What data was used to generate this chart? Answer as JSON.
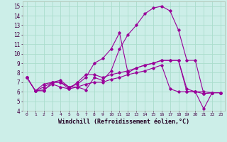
{
  "xlabel": "Windchill (Refroidissement éolien,°C)",
  "bg_color": "#cceee8",
  "grid_color": "#aaddcc",
  "line_color": "#990099",
  "ylim": [
    4,
    15.5
  ],
  "xlim": [
    -0.5,
    23.5
  ],
  "yticks": [
    4,
    5,
    6,
    7,
    8,
    9,
    10,
    11,
    12,
    13,
    14,
    15
  ],
  "xticks": [
    0,
    1,
    2,
    3,
    4,
    5,
    6,
    7,
    8,
    9,
    10,
    11,
    12,
    13,
    14,
    15,
    16,
    17,
    18,
    19,
    20,
    21,
    22,
    23
  ],
  "series": [
    [
      7.5,
      6.1,
      6.1,
      7.0,
      7.2,
      6.5,
      6.5,
      6.2,
      7.5,
      7.2,
      8.2,
      10.5,
      12.0,
      13.0,
      14.2,
      14.8,
      15.0,
      14.5,
      12.5,
      9.3,
      9.3,
      5.8,
      5.9,
      5.9
    ],
    [
      7.5,
      6.1,
      6.8,
      7.0,
      7.0,
      6.3,
      7.0,
      7.8,
      7.8,
      7.5,
      7.8,
      8.0,
      8.2,
      8.5,
      8.8,
      9.0,
      9.3,
      9.3,
      9.3,
      6.3,
      6.0,
      5.8,
      5.9,
      5.9
    ],
    [
      7.5,
      6.1,
      6.5,
      7.0,
      7.0,
      6.5,
      6.8,
      7.5,
      9.0,
      9.5,
      10.5,
      12.2,
      8.0,
      8.5,
      8.8,
      9.0,
      9.3,
      9.3,
      9.3,
      6.0,
      6.0,
      4.2,
      5.9,
      5.9
    ],
    [
      7.5,
      6.1,
      6.2,
      6.8,
      6.5,
      6.3,
      6.5,
      6.8,
      7.0,
      7.0,
      7.3,
      7.5,
      7.8,
      8.0,
      8.2,
      8.5,
      8.8,
      6.3,
      6.0,
      6.0,
      6.0,
      6.0,
      5.9,
      5.9
    ]
  ]
}
